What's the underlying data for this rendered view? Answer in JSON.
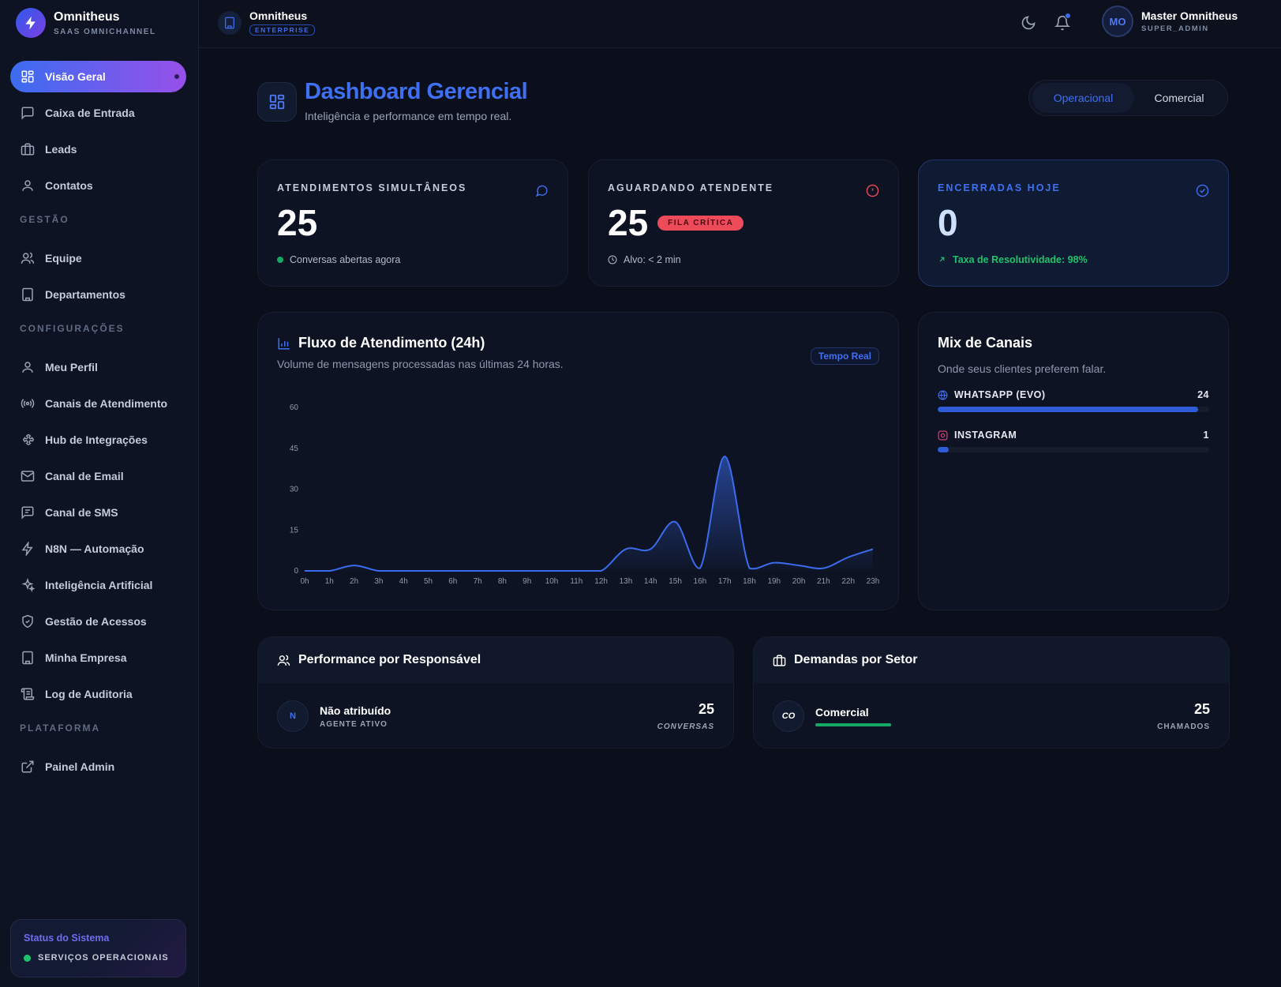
{
  "brand": {
    "title": "Omnitheus",
    "subtitle": "SAAS OMNICHANNEL"
  },
  "nav": {
    "main": [
      {
        "label": "Visão Geral",
        "icon": "dashboard-icon",
        "active": true
      },
      {
        "label": "Caixa de Entrada",
        "icon": "message-square-icon"
      },
      {
        "label": "Leads",
        "icon": "briefcase-icon"
      },
      {
        "label": "Contatos",
        "icon": "user-icon"
      }
    ],
    "section_gestao": "GESTÃO",
    "gestao": [
      {
        "label": "Equipe",
        "icon": "users-icon"
      },
      {
        "label": "Departamentos",
        "icon": "building-icon"
      }
    ],
    "section_config": "CONFIGURAÇÕES",
    "config": [
      {
        "label": "Meu Perfil",
        "icon": "user-icon"
      },
      {
        "label": "Canais de Atendimento",
        "icon": "radio-icon"
      },
      {
        "label": "Hub de Integrações",
        "icon": "puzzle-icon"
      },
      {
        "label": "Canal de Email",
        "icon": "mail-icon"
      },
      {
        "label": "Canal de SMS",
        "icon": "sms-icon"
      },
      {
        "label": "N8N — Automação",
        "icon": "zap-icon"
      },
      {
        "label": "Inteligência Artificial",
        "icon": "sparkles-icon"
      },
      {
        "label": "Gestão de Acessos",
        "icon": "shield-icon"
      },
      {
        "label": "Minha Empresa",
        "icon": "building-icon"
      },
      {
        "label": "Log de Auditoria",
        "icon": "scroll-icon"
      }
    ],
    "section_plataforma": "PLATAFORMA",
    "plataforma": [
      {
        "label": "Painel Admin",
        "icon": "external-link-icon"
      }
    ]
  },
  "system_status": {
    "title": "Status do Sistema",
    "text": "SERVIÇOS OPERACIONAIS"
  },
  "topbar": {
    "org_name": "Omnitheus",
    "org_plan": "ENTERPRISE",
    "user_initials": "MO",
    "user_name": "Master Omnitheus",
    "user_role": "SUPER_ADMIN"
  },
  "page": {
    "title": "Dashboard Gerencial",
    "subtitle": "Inteligência e performance em tempo real.",
    "tabs": [
      {
        "label": "Operacional",
        "active": true
      },
      {
        "label": "Comercial"
      }
    ]
  },
  "kpis": [
    {
      "label": "ATENDIMENTOS SIMULTÂNEOS",
      "value": "25",
      "foot": "Conversas abertas agora",
      "icon": "message-circle-icon"
    },
    {
      "label": "AGUARDANDO ATENDENTE",
      "value": "25",
      "badge": "FILA CRÍTICA",
      "foot": "Alvo: < 2 min",
      "icon": "alert-circle-icon"
    },
    {
      "label": "ENCERRADAS HOJE",
      "value": "0",
      "foot": "Taxa de Resolutividade: 98%",
      "icon": "check-circle-icon"
    }
  ],
  "flow": {
    "title": "Fluxo de Atendimento (24h)",
    "subtitle": "Volume de mensagens processadas nas últimas 24 horas.",
    "badge": "Tempo Real"
  },
  "chart_data": {
    "type": "area",
    "x": [
      "0h",
      "1h",
      "2h",
      "3h",
      "4h",
      "5h",
      "6h",
      "7h",
      "8h",
      "9h",
      "10h",
      "11h",
      "12h",
      "13h",
      "14h",
      "15h",
      "16h",
      "17h",
      "18h",
      "19h",
      "20h",
      "21h",
      "22h",
      "23h"
    ],
    "values": [
      0,
      0,
      2,
      0,
      0,
      0,
      0,
      0,
      0,
      0,
      0,
      0,
      0,
      8,
      8,
      18,
      1,
      42,
      1,
      3,
      2,
      1,
      5,
      8
    ],
    "yticks": [
      0,
      15,
      30,
      45,
      60
    ],
    "ylim": [
      0,
      60
    ],
    "color": "#3b6cf0"
  },
  "mix": {
    "title": "Mix de Canais",
    "subtitle": "Onde seus clientes preferem falar.",
    "channels": [
      {
        "name": "WHATSAPP (EVO)",
        "count": "24",
        "share": 0.96,
        "icon": "globe-icon",
        "color": "#3f70f2"
      },
      {
        "name": "INSTAGRAM",
        "count": "1",
        "share": 0.04,
        "icon": "instagram-icon",
        "color": "#e0457b"
      }
    ]
  },
  "performance": {
    "title": "Performance por Responsável",
    "rows": [
      {
        "initial": "N",
        "name": "Não atribuído",
        "role": "AGENTE ATIVO",
        "value": "25",
        "unit": "CONVERSAS"
      }
    ]
  },
  "demandas": {
    "title": "Demandas por Setor",
    "rows": [
      {
        "initial": "CO",
        "name": "Comercial",
        "value": "25",
        "unit": "CHAMADOS",
        "share": 1
      }
    ]
  }
}
